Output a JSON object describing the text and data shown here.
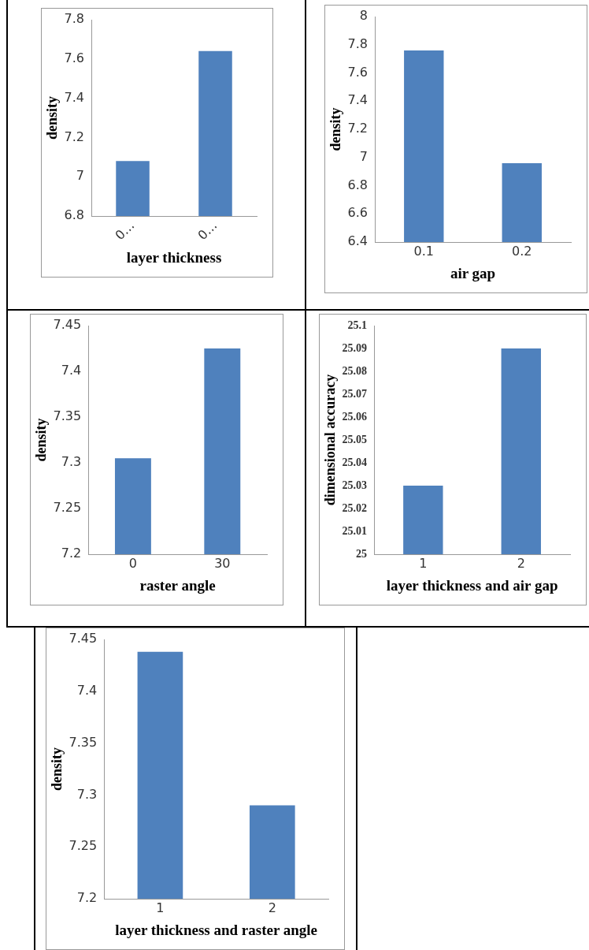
{
  "chart_data": [
    {
      "type": "bar",
      "xlabel": "layer thickness",
      "ylabel": "density",
      "categories": [
        "0…",
        "0…"
      ],
      "values": [
        7.08,
        7.64
      ],
      "color": "#4f81bd",
      "ylim": [
        6.8,
        7.8
      ],
      "yticks": [
        6.8,
        7,
        7.2,
        7.4,
        7.6,
        7.8
      ]
    },
    {
      "type": "bar",
      "xlabel": "air gap",
      "ylabel": "density",
      "categories": [
        "0.1",
        "0.2"
      ],
      "values": [
        7.76,
        6.96
      ],
      "color": "#4f81bd",
      "ylim": [
        6.4,
        8
      ],
      "yticks": [
        6.4,
        6.6,
        6.8,
        7,
        7.2,
        7.4,
        7.6,
        7.8,
        8
      ]
    },
    {
      "type": "bar",
      "xlabel": "raster angle",
      "ylabel": "density",
      "categories": [
        "0",
        "30"
      ],
      "values": [
        7.305,
        7.425
      ],
      "color": "#4f81bd",
      "ylim": [
        7.2,
        7.45
      ],
      "yticks": [
        7.2,
        7.25,
        7.3,
        7.35,
        7.4,
        7.45
      ]
    },
    {
      "type": "bar",
      "xlabel": "layer thickness and air gap",
      "ylabel": "dimensional accuracy",
      "categories": [
        "1",
        "2"
      ],
      "values": [
        25.03,
        25.09
      ],
      "color": "#4f81bd",
      "ylim": [
        25,
        25.1
      ],
      "yticks": [
        25,
        25.01,
        25.02,
        25.03,
        25.04,
        25.05,
        25.06,
        25.07,
        25.08,
        25.09,
        25.1
      ]
    },
    {
      "type": "bar",
      "xlabel": "layer thickness and raster angle",
      "ylabel": "density",
      "categories": [
        "1",
        "2"
      ],
      "values": [
        7.438,
        7.29
      ],
      "color": "#4f81bd",
      "ylim": [
        7.2,
        7.45
      ],
      "yticks": [
        7.2,
        7.25,
        7.3,
        7.35,
        7.4,
        7.45
      ]
    }
  ]
}
